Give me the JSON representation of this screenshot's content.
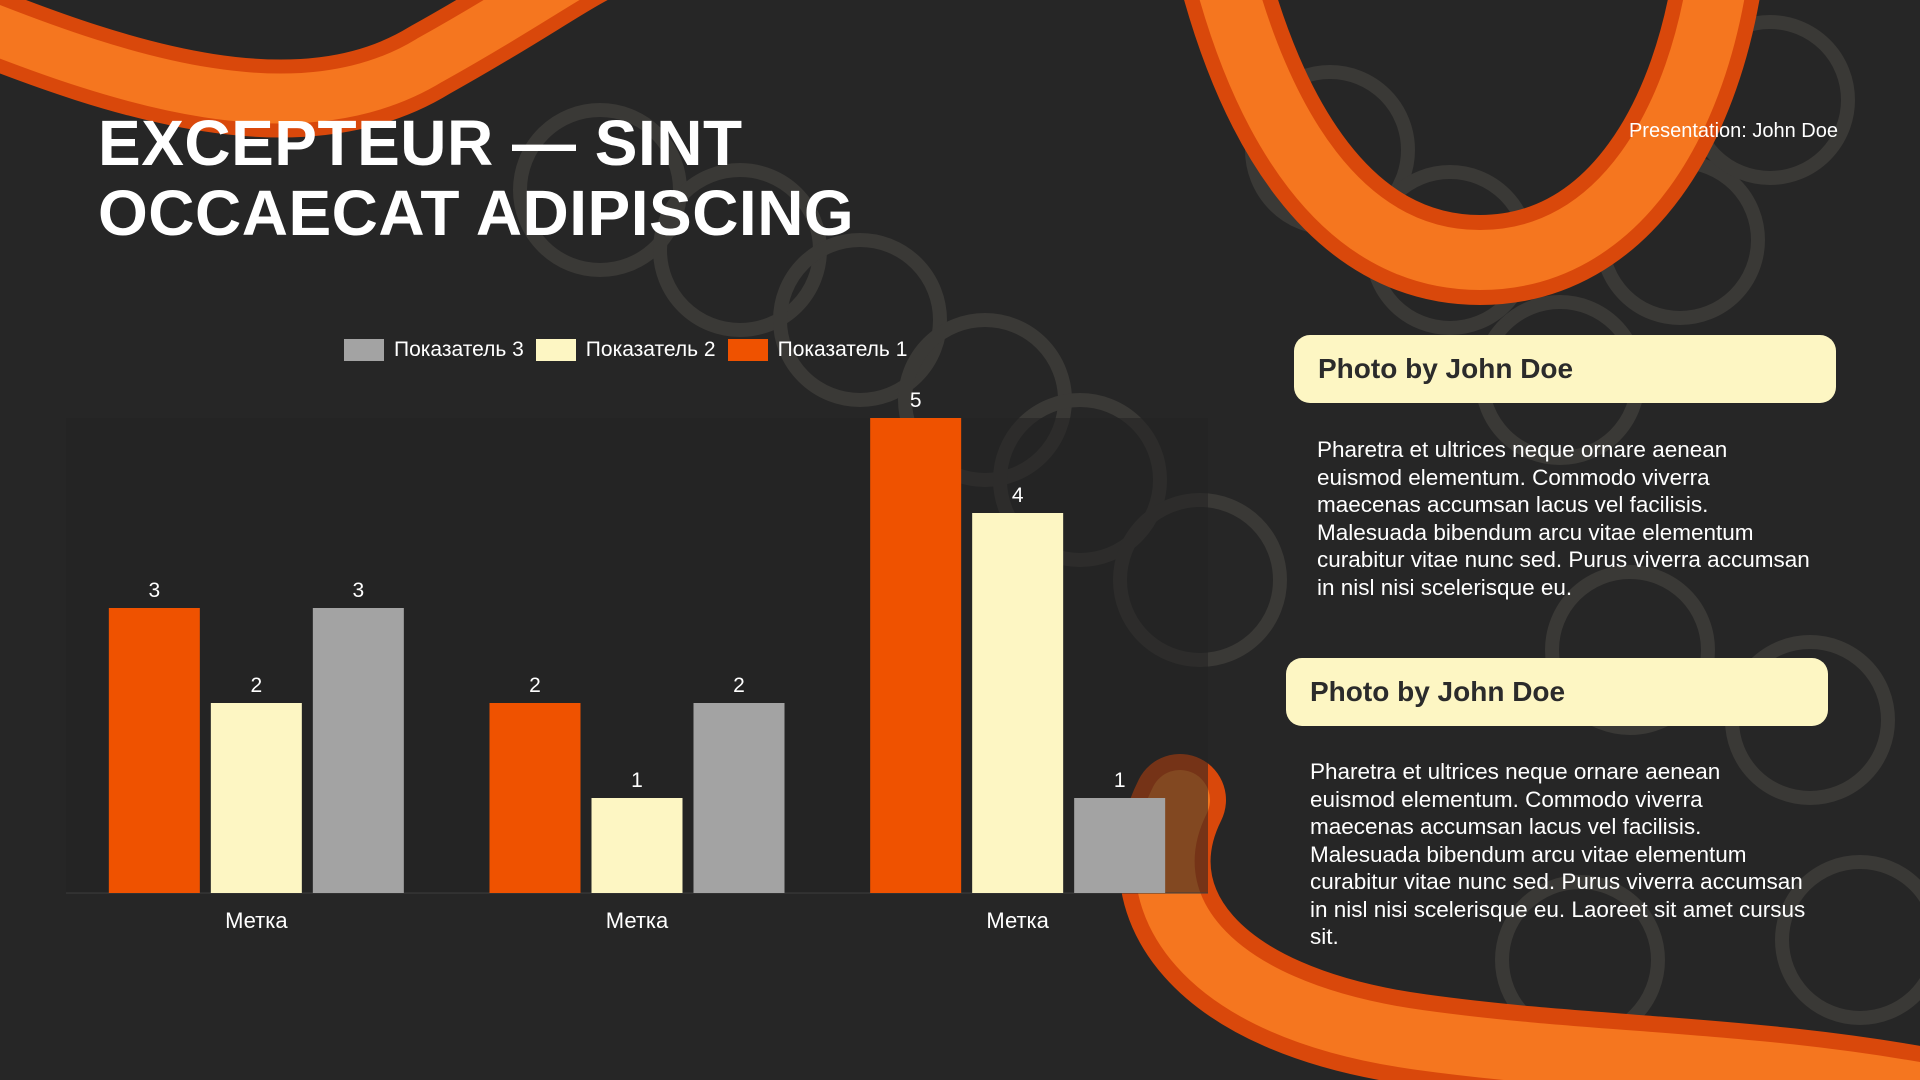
{
  "slide": {
    "title_lines": [
      "EXCEPTEUR — SINT",
      "OCCAECAT ADIPISCING"
    ],
    "presenter": "Presentation: John Doe"
  },
  "colors": {
    "background": "#262626",
    "series_1": "#ef5200",
    "series_2": "#fdf6c3",
    "series_3": "#a3a3a3",
    "card_fill": "#fdf6c3",
    "accent_fur": "#f06a1a"
  },
  "chart_data": {
    "type": "bar",
    "categories": [
      "Метка",
      "Метка",
      "Метка"
    ],
    "series": [
      {
        "name": "Показатель 1",
        "values": [
          3,
          2,
          5
        ]
      },
      {
        "name": "Показатель 2",
        "values": [
          2,
          1,
          4
        ]
      },
      {
        "name": "Показатель 3",
        "values": [
          3,
          2,
          1
        ]
      }
    ],
    "legend_order": [
      "Показатель 3",
      "Показатель 2",
      "Показатель 1"
    ],
    "ylim": [
      0,
      5
    ],
    "data_labels": true,
    "grid": false,
    "legend_position": "top"
  },
  "cards": [
    {
      "heading": "Photo by John Doe",
      "body": "Pharetra et ultrices neque ornare aenean euismod elementum. Commodo viverra maecenas accumsan lacus vel facilisis. Malesuada bibendum arcu vitae elementum curabitur vitae nunc sed. Purus viverra accumsan in nisl nisi scelerisque eu."
    },
    {
      "heading": "Photo by John Doe",
      "body": "Pharetra et ultrices neque ornare aenean euismod elementum. Commodo viverra maecenas accumsan lacus vel facilisis. Malesuada bibendum arcu vitae elementum curabitur vitae nunc sed. Purus viverra accumsan in nisl nisi scelerisque eu. Laoreet sit amet cursus sit."
    }
  ]
}
